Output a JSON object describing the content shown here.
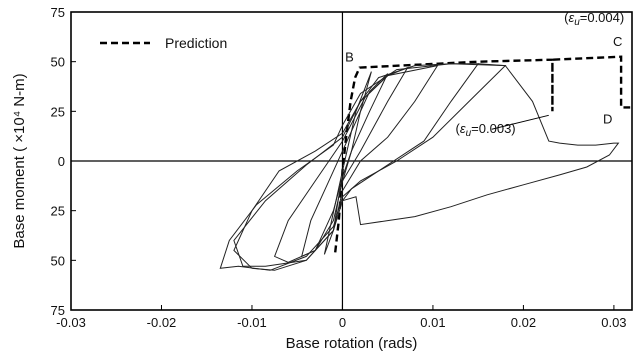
{
  "chart_data": {
    "type": "line",
    "xlabel": "Base rotation (rads)",
    "ylabel": "Base moment ( ×10⁴ N-m)",
    "xlim": [
      -0.03,
      0.032
    ],
    "ylim": [
      -75,
      75
    ],
    "x_ticks": [
      -0.03,
      -0.02,
      -0.01,
      0,
      0.01,
      0.02,
      0.03
    ],
    "x_tick_labels": [
      "-0.03",
      "-0.02",
      "-0.01",
      "0",
      "0.01",
      "0.02",
      "0.03"
    ],
    "y_ticks": [
      75,
      50,
      25,
      0,
      -25,
      -50,
      -75
    ],
    "y_tick_labels": [
      "75",
      "50",
      "25",
      "0",
      "25",
      "50",
      "75"
    ],
    "legend": {
      "position": "top-left",
      "entries": [
        "Prediction"
      ]
    },
    "annotations": [
      {
        "id": "B",
        "text": "B",
        "x": 0.0003,
        "y": 50
      },
      {
        "id": "C",
        "text": "C",
        "x": 0.0299,
        "y": 58
      },
      {
        "id": "D",
        "text": "D",
        "x": 0.0288,
        "y": 19
      },
      {
        "id": "eps4",
        "text": "(εu=0.004)",
        "x": 0.0245,
        "y": 70
      },
      {
        "id": "eps3",
        "text": "(εu=0.003)",
        "x": 0.0125,
        "y": 14
      }
    ],
    "series": [
      {
        "name": "Prediction",
        "style": "dashed",
        "points": [
          [
            -0.0008,
            -46
          ],
          [
            -0.0004,
            -30
          ],
          [
            0,
            -5
          ],
          [
            0.0004,
            12
          ],
          [
            0.0009,
            30
          ],
          [
            0.0014,
            42
          ],
          [
            0.0019,
            47
          ],
          [
            0.015,
            50
          ],
          [
            0.0232,
            51
          ],
          [
            0.0232,
            25
          ],
          [
            0.0232,
            51
          ],
          [
            0.0308,
            52.5
          ],
          [
            0.0308,
            27
          ],
          [
            0.0318,
            27
          ]
        ]
      },
      {
        "name": "",
        "style": "solid",
        "loops": [
          [
            [
              0.015,
              49
            ],
            [
              0.012,
              30
            ],
            [
              0.009,
              10
            ],
            [
              0.004,
              -5
            ],
            [
              0.001,
              -14
            ],
            [
              0,
              -20
            ],
            [
              -0.001,
              -35
            ],
            [
              -0.004,
              -50
            ],
            [
              -0.0075,
              -55
            ],
            [
              -0.01,
              -54
            ],
            [
              -0.012,
              -45
            ],
            [
              -0.01,
              -25
            ],
            [
              -0.007,
              -5
            ],
            [
              -0.003,
              5
            ],
            [
              0,
              14
            ],
            [
              0.002,
              30
            ],
            [
              0.004,
              42
            ],
            [
              0.008,
              48
            ],
            [
              0.012,
              49
            ],
            [
              0.015,
              49
            ]
          ],
          [
            [
              0.0105,
              48
            ],
            [
              0.008,
              30
            ],
            [
              0.005,
              12
            ],
            [
              0.002,
              0
            ],
            [
              0,
              -15
            ],
            [
              -0.001,
              -35
            ],
            [
              -0.004,
              -50
            ],
            [
              -0.0085,
              -53
            ],
            [
              -0.011,
              -53
            ],
            [
              -0.012,
              -40
            ],
            [
              -0.0085,
              -20
            ],
            [
              -0.004,
              -2
            ],
            [
              0,
              12
            ],
            [
              0.002,
              30
            ],
            [
              0.005,
              43
            ],
            [
              0.0105,
              48
            ]
          ],
          [
            [
              0.0072,
              47
            ],
            [
              0.005,
              30
            ],
            [
              0.002,
              5
            ],
            [
              0,
              -10
            ],
            [
              -0.001,
              -30
            ],
            [
              -0.003,
              -45
            ],
            [
              -0.006,
              -51
            ],
            [
              -0.0075,
              -48
            ],
            [
              -0.006,
              -30
            ],
            [
              -0.003,
              -10
            ],
            [
              0,
              10
            ],
            [
              0.0025,
              32
            ],
            [
              0.005,
              43
            ],
            [
              0.0072,
              47
            ]
          ],
          [
            [
              0.005,
              44
            ],
            [
              0.003,
              25
            ],
            [
              0.001,
              5
            ],
            [
              0,
              -8
            ],
            [
              -0.001,
              -25
            ],
            [
              -0.003,
              -45
            ],
            [
              -0.0045,
              -48
            ],
            [
              -0.0035,
              -30
            ],
            [
              -0.0015,
              -10
            ],
            [
              0.001,
              15
            ],
            [
              0.003,
              35
            ],
            [
              0.005,
              44
            ]
          ],
          [
            [
              0.0032,
              45
            ],
            [
              0.002,
              25
            ],
            [
              0.001,
              5
            ],
            [
              -0.0003,
              -15
            ],
            [
              -0.001,
              -35
            ],
            [
              -0.002,
              -47
            ],
            [
              -0.0012,
              -30
            ],
            [
              0,
              -5
            ],
            [
              0.0015,
              25
            ],
            [
              0.0032,
              45
            ]
          ],
          [
            [
              0.018,
              48
            ],
            [
              0.014,
              30
            ],
            [
              0.01,
              12
            ],
            [
              0.006,
              0
            ],
            [
              0.002,
              -10
            ],
            [
              0,
              -18
            ],
            [
              -0.001,
              -33
            ],
            [
              -0.004,
              -48
            ],
            [
              -0.008,
              -55
            ],
            [
              -0.0115,
              -53
            ],
            [
              -0.0135,
              -54
            ],
            [
              -0.0125,
              -40
            ],
            [
              -0.0095,
              -22
            ],
            [
              -0.005,
              -5
            ],
            [
              -0.001,
              8
            ],
            [
              0,
              18
            ],
            [
              0.002,
              34
            ],
            [
              0.006,
              46
            ],
            [
              0.012,
              49
            ],
            [
              0.018,
              48
            ]
          ]
        ],
        "tail": [
          [
            0.015,
            49
          ],
          [
            0.018,
            48
          ],
          [
            0.021,
            30
          ],
          [
            0.0228,
            10
          ],
          [
            0.024,
            9
          ],
          [
            0.026,
            8
          ],
          [
            0.028,
            8
          ],
          [
            0.03,
            9
          ],
          [
            0.0305,
            9
          ],
          [
            0.0295,
            3
          ],
          [
            0.027,
            -3
          ],
          [
            0.024,
            -7
          ],
          [
            0.02,
            -12
          ],
          [
            0.016,
            -17
          ],
          [
            0.012,
            -23
          ],
          [
            0.008,
            -28
          ],
          [
            0.005,
            -30
          ],
          [
            0.002,
            -32
          ],
          [
            0.0015,
            -18
          ],
          [
            0,
            -20
          ]
        ]
      }
    ]
  }
}
